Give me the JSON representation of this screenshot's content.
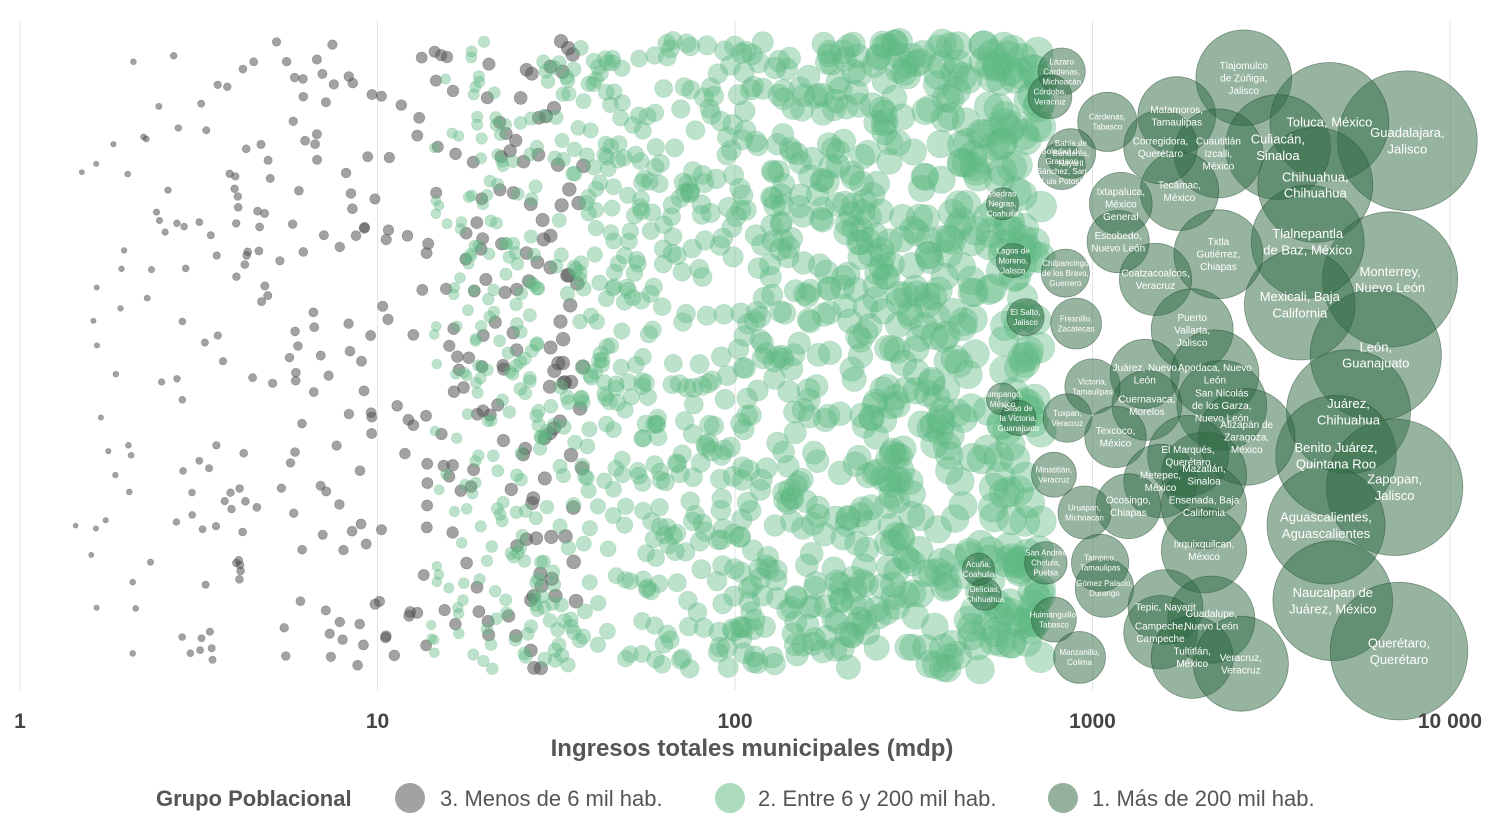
{
  "chart_data": {
    "type": "scatter",
    "title": "",
    "xlabel": "Ingresos totales municipales (mdp)",
    "ylabel": "",
    "xscale": "log",
    "xlim": [
      1,
      10000
    ],
    "x_ticks": [
      1,
      10,
      100,
      1000,
      10000
    ],
    "x_tick_labels": [
      "1",
      "10",
      "100",
      "1000",
      "10 000"
    ],
    "grid": "vertical",
    "legend": {
      "position": "bottom",
      "title": "Grupo Poblacional",
      "entries": [
        {
          "label": "3. Menos de 6 mil hab.",
          "color": "#555555"
        },
        {
          "label": "2. Entre 6 y 200 mil hab.",
          "color": "#8fcfa6"
        },
        {
          "label": "1. Más de 200 mil hab.",
          "color": "#4f7d5c"
        }
      ]
    },
    "series_colors": {
      "small": "#555555",
      "medium": "#5fba83",
      "large": "#2f6a43"
    },
    "labeled_points": [
      {
        "label": "Guadalajara,\nJalisco",
        "x": 7600,
        "jitter": 0.16
      },
      {
        "label": "Tlajomulco\nde Zúñiga,\nJalisco",
        "x": 2650,
        "jitter": 0.06
      },
      {
        "label": "Toluca, México",
        "x": 4600,
        "jitter": 0.13
      },
      {
        "label": "Culiacán,\nSinaloa",
        "x": 3300,
        "jitter": 0.17
      },
      {
        "label": "Chihuahua,\nChihuahua",
        "x": 4200,
        "jitter": 0.23
      },
      {
        "label": "Monterrey,\nNuevo León",
        "x": 6800,
        "jitter": 0.38
      },
      {
        "label": "Tlalnepantla\nde Baz, México",
        "x": 4000,
        "jitter": 0.32
      },
      {
        "label": "Mexicali, Baja\nCalifornia",
        "x": 3800,
        "jitter": 0.42
      },
      {
        "label": "León,\nGuanajuato",
        "x": 6200,
        "jitter": 0.5
      },
      {
        "label": "Juárez,\nChihuahua",
        "x": 5200,
        "jitter": 0.59
      },
      {
        "label": "Benito Juárez,\nQuintana Roo",
        "x": 4800,
        "jitter": 0.66
      },
      {
        "label": "Zapopan,\nJalisco",
        "x": 7000,
        "jitter": 0.71
      },
      {
        "label": "Aguascalientes,\nAguascalientes",
        "x": 4500,
        "jitter": 0.77
      },
      {
        "label": "Naucalpan de\nJuárez, México",
        "x": 4700,
        "jitter": 0.89
      },
      {
        "label": "Querétaro,\nQuerétaro",
        "x": 7200,
        "jitter": 0.97
      },
      {
        "label": "Matamoros,\nTamaulipas",
        "x": 1720,
        "jitter": 0.12
      },
      {
        "label": "Cuautitlán\nIzcalli,\nMéxico",
        "x": 2250,
        "jitter": 0.18
      },
      {
        "label": "Tecámac,\nMéxico",
        "x": 1750,
        "jitter": 0.24
      },
      {
        "label": "Ixtapaluca,\nMéxico\nGeneral",
        "x": 1200,
        "jitter": 0.26
      },
      {
        "label": "Escobedo,\nNuevo León",
        "x": 1180,
        "jitter": 0.32
      },
      {
        "label": "Txtla\nGutiérrez,\nChiapas",
        "x": 2250,
        "jitter": 0.34
      },
      {
        "label": "Coatzacoalcos,\nVeracruz",
        "x": 1500,
        "jitter": 0.38
      },
      {
        "label": "Puerto\nVallarta,\nJalisco",
        "x": 1900,
        "jitter": 0.46
      },
      {
        "label": "Juárez, Nuevo\nLeón",
        "x": 1400,
        "jitter": 0.53
      },
      {
        "label": "Apodaca, Nuevo\nLeón",
        "x": 2200,
        "jitter": 0.53
      },
      {
        "label": "San Nicolás\nde los Garza,\nNuevo León",
        "x": 2300,
        "jitter": 0.58
      },
      {
        "label": "Atizapán de\nZaragoza,\nMéxico",
        "x": 2700,
        "jitter": 0.63
      },
      {
        "label": "Cuernavaca,\nMorelos",
        "x": 1420,
        "jitter": 0.58
      },
      {
        "label": "Victoria,\nTamaulipas",
        "x": 1000,
        "jitter": 0.55
      },
      {
        "label": "Texcoco,\nMéxico",
        "x": 1160,
        "jitter": 0.63
      },
      {
        "label": "Mazatlán,\nSinaloa",
        "x": 2050,
        "jitter": 0.69
      },
      {
        "label": "El Marqués,\nQuerétaro",
        "x": 1850,
        "jitter": 0.66
      },
      {
        "label": "Metepec,\nMéxico",
        "x": 1550,
        "jitter": 0.7
      },
      {
        "label": "Ensenada, Baja\nCalifornia",
        "x": 2050,
        "jitter": 0.74
      },
      {
        "label": "Ocosingo,\nChiapas",
        "x": 1260,
        "jitter": 0.74
      },
      {
        "label": "Uruapan,\nMichoacán",
        "x": 950,
        "jitter": 0.75
      },
      {
        "label": "Ixquixquilcan,\nMéxico",
        "x": 2050,
        "jitter": 0.81
      },
      {
        "label": "Tampico,\nTamaulipas",
        "x": 1050,
        "jitter": 0.83
      },
      {
        "label": "Gómez Palacio,\nDurango",
        "x": 1080,
        "jitter": 0.87
      },
      {
        "label": "Tepic, Nayarit",
        "x": 1600,
        "jitter": 0.9
      },
      {
        "label": "Guadalupe,\nNuevo León",
        "x": 2150,
        "jitter": 0.92
      },
      {
        "label": "Campeche,\nCampeche",
        "x": 1550,
        "jitter": 0.94
      },
      {
        "label": "Tultitlán,\nMéxico",
        "x": 1900,
        "jitter": 0.98
      },
      {
        "label": "Veracruz,\nVeracruz",
        "x": 2600,
        "jitter": 0.99
      },
      {
        "label": "Manzanillo,\nColima",
        "x": 920,
        "jitter": 0.98
      },
      {
        "label": "Cárdenas,\nTabasco",
        "x": 1100,
        "jitter": 0.13
      },
      {
        "label": "Corregidora,\nQuerétaro",
        "x": 1550,
        "jitter": 0.17
      },
      {
        "label": "Lázaro\nCárdenas,\nMichoacán",
        "x": 820,
        "jitter": 0.05
      },
      {
        "label": "Córdoba,\nVeracruz",
        "x": 760,
        "jitter": 0.09
      },
      {
        "label": "Soledad de\nGraciano\nSánchez, San\nLuis Potosí",
        "x": 820,
        "jitter": 0.2
      },
      {
        "label": "Bahía de\nBanderas,\nNayarit",
        "x": 870,
        "jitter": 0.18
      },
      {
        "label": "Chilpancingo\nde los Bravo,\nGuerrero",
        "x": 840,
        "jitter": 0.37
      },
      {
        "label": "Fresnillo,\nZacatecas",
        "x": 900,
        "jitter": 0.45
      },
      {
        "label": "Tuxpan,\nVeracruz",
        "x": 850,
        "jitter": 0.6
      },
      {
        "label": "Minatitlán,\nVeracruz",
        "x": 780,
        "jitter": 0.69
      },
      {
        "label": "San Andrés\nCholula,\nPuebla",
        "x": 740,
        "jitter": 0.83
      },
      {
        "label": "Huimanguillo,\nTabasco",
        "x": 780,
        "jitter": 0.92
      },
      {
        "label": "Zumpango,\nMéxico",
        "x": 560,
        "jitter": 0.57
      },
      {
        "label": "Silao de\nla Victoria,\nGuanajuato",
        "x": 620,
        "jitter": 0.6
      },
      {
        "label": "El Salto,\nJalisco",
        "x": 650,
        "jitter": 0.44
      },
      {
        "label": "Lagos de\nMoreno,\nJalisco",
        "x": 600,
        "jitter": 0.35
      },
      {
        "label": "Piedras\nNegras,\nCoahuila",
        "x": 560,
        "jitter": 0.26
      },
      {
        "label": "Acuña,\nCoahuila",
        "x": 480,
        "jitter": 0.84
      },
      {
        "label": "Delicias,\nChihuahua",
        "x": 500,
        "jitter": 0.88
      }
    ]
  }
}
